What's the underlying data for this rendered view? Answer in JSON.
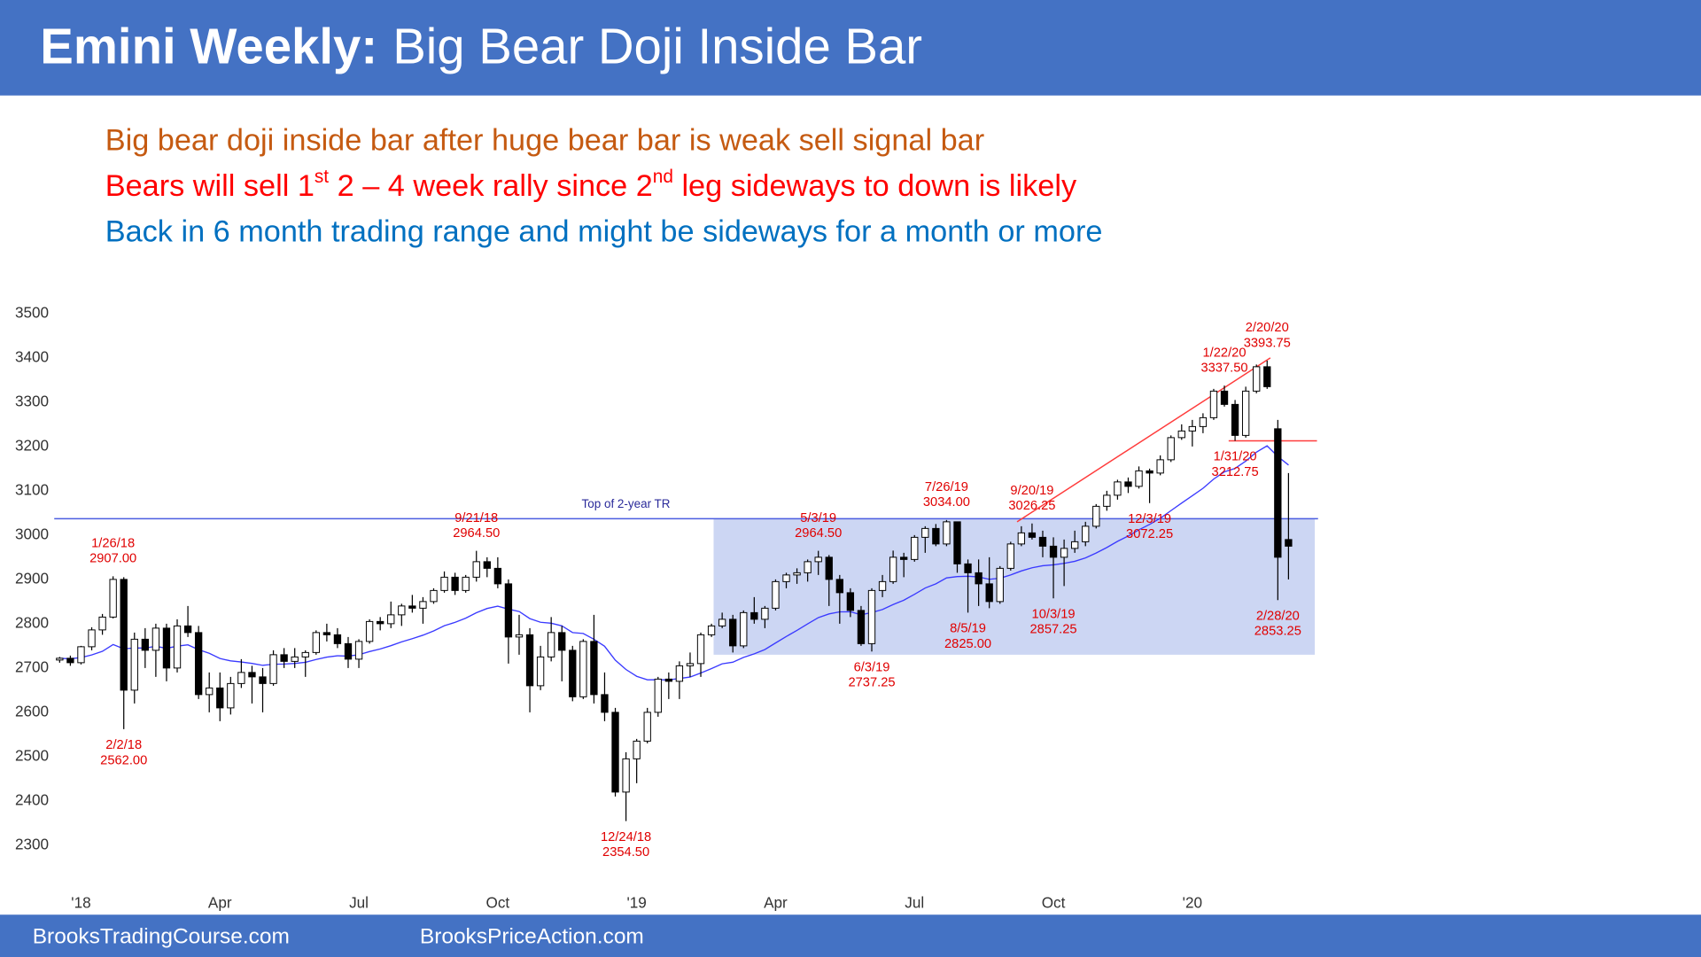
{
  "header": {
    "title_bold": "Emini Weekly:",
    "title": "Big Bear Doji Inside Bar"
  },
  "notes": [
    {
      "color": "#c55a11",
      "parts": [
        {
          "text": "Big bear doji inside bar after huge bear bar is weak sell signal bar"
        }
      ]
    },
    {
      "color": "#ff0000",
      "parts": [
        {
          "text": "Bears will sell 1"
        },
        {
          "text": "st",
          "sup": true
        },
        {
          "text": " 2 – 4 week rally since 2"
        },
        {
          "text": "nd",
          "sup": true
        },
        {
          "text": " leg sideways to down is likely"
        }
      ]
    },
    {
      "color": "#0070c0",
      "parts": [
        {
          "text": "Back in 6 month trading range and might be sideways for a month or more"
        }
      ]
    }
  ],
  "chart_data": {
    "type": "candlestick",
    "categories": [
      null,
      null,
      "'18",
      null,
      null,
      null,
      null,
      null,
      null,
      null,
      null,
      null,
      null,
      null,
      null,
      "Apr",
      null,
      null,
      null,
      null,
      null,
      null,
      null,
      null,
      null,
      null,
      null,
      null,
      "Jul",
      null,
      null,
      null,
      null,
      null,
      null,
      null,
      null,
      null,
      null,
      null,
      null,
      "Oct",
      null,
      null,
      null,
      null,
      null,
      null,
      null,
      null,
      null,
      null,
      null,
      null,
      "'19",
      null,
      null,
      null,
      null,
      null,
      null,
      null,
      null,
      null,
      null,
      null,
      null,
      "Apr",
      null,
      null,
      null,
      null,
      null,
      null,
      null,
      null,
      null,
      null,
      null,
      null,
      "Jul",
      null,
      null,
      null,
      null,
      null,
      null,
      null,
      null,
      null,
      null,
      null,
      null,
      "Oct",
      null,
      null,
      null,
      null,
      null,
      null,
      null,
      null,
      null,
      null,
      null,
      null,
      "'20",
      null,
      null,
      null,
      null,
      null,
      null,
      null,
      null,
      null
    ],
    "open": [
      2718,
      2722,
      2712,
      2748,
      2786,
      2815,
      2900,
      2650,
      2765,
      2740,
      2790,
      2700,
      2795,
      2780,
      2640,
      2655,
      2610,
      2665,
      2690,
      2680,
      2665,
      2730,
      2715,
      2725,
      2735,
      2780,
      2775,
      2755,
      2720,
      2760,
      2805,
      2800,
      2820,
      2840,
      2835,
      2850,
      2875,
      2905,
      2875,
      2905,
      2940,
      2925,
      2890,
      2770,
      2775,
      2660,
      2725,
      2780,
      2740,
      2635,
      2760,
      2640,
      2600,
      2420,
      2495,
      2535,
      2600,
      2675,
      2670,
      2705,
      2710,
      2775,
      2795,
      2810,
      2750,
      2825,
      2810,
      2835,
      2895,
      2910,
      2915,
      2940,
      2950,
      2900,
      2870,
      2830,
      2755,
      2875,
      2895,
      2950,
      2945,
      2995,
      3015,
      2980,
      3030,
      2935,
      2915,
      2890,
      2850,
      2925,
      2980,
      3005,
      2995,
      2975,
      2950,
      2970,
      2985,
      3020,
      3065,
      3090,
      3120,
      3110,
      3145,
      3140,
      3170,
      3220,
      3235,
      3245,
      3265,
      3325,
      3295,
      3225,
      3325,
      3380,
      3240,
      2990
    ],
    "high": [
      2725,
      2728,
      2750,
      2792,
      2822,
      2907,
      2905,
      2780,
      2790,
      2800,
      2800,
      2810,
      2840,
      2795,
      2690,
      2690,
      2680,
      2720,
      2705,
      2700,
      2740,
      2745,
      2745,
      2740,
      2785,
      2800,
      2790,
      2770,
      2765,
      2810,
      2815,
      2850,
      2845,
      2865,
      2860,
      2880,
      2918,
      2915,
      2910,
      2964.5,
      2950,
      2950,
      2900,
      2820,
      2790,
      2750,
      2815,
      2795,
      2750,
      2765,
      2820,
      2690,
      2610,
      2510,
      2540,
      2610,
      2680,
      2690,
      2715,
      2735,
      2780,
      2800,
      2825,
      2820,
      2830,
      2860,
      2840,
      2900,
      2915,
      2925,
      2945,
      2964.5,
      2955,
      2910,
      2880,
      2840,
      2880,
      2910,
      2965,
      2960,
      3000,
      3020,
      3025,
      3034,
      3030,
      2945,
      2945,
      2950,
      2930,
      2985,
      3020,
      3026.25,
      3010,
      2995,
      2990,
      3010,
      3030,
      3070,
      3100,
      3125,
      3130,
      3155,
      3150,
      3180,
      3225,
      3250,
      3260,
      3275,
      3330,
      3337.5,
      3305,
      3335,
      3385,
      3393.75,
      3260,
      3140
    ],
    "low": [
      2712,
      2705,
      2708,
      2740,
      2775,
      2812,
      2562,
      2620,
      2700,
      2680,
      2670,
      2690,
      2770,
      2630,
      2600,
      2580,
      2595,
      2655,
      2620,
      2600,
      2660,
      2700,
      2700,
      2680,
      2730,
      2760,
      2745,
      2700,
      2700,
      2755,
      2785,
      2790,
      2795,
      2825,
      2800,
      2845,
      2870,
      2865,
      2870,
      2895,
      2905,
      2880,
      2710,
      2730,
      2600,
      2650,
      2715,
      2670,
      2625,
      2630,
      2620,
      2580,
      2410,
      2354.5,
      2440,
      2530,
      2590,
      2630,
      2630,
      2680,
      2680,
      2770,
      2790,
      2735,
      2745,
      2800,
      2790,
      2830,
      2880,
      2890,
      2895,
      2910,
      2840,
      2800,
      2815,
      2750,
      2737.25,
      2860,
      2890,
      2905,
      2940,
      2960,
      2975,
      2975,
      2915,
      2825,
      2840,
      2835,
      2845,
      2920,
      2975,
      2990,
      2950,
      2857.25,
      2885,
      2960,
      2975,
      3015,
      3055,
      3080,
      3095,
      3105,
      3072.25,
      3135,
      3165,
      3215,
      3200,
      3230,
      3260,
      3290,
      3212.75,
      3220,
      3320,
      3330,
      2853.25,
      2900
    ],
    "close": [
      2722,
      2712,
      2748,
      2786,
      2815,
      2900,
      2650,
      2765,
      2740,
      2790,
      2700,
      2795,
      2780,
      2640,
      2655,
      2610,
      2665,
      2690,
      2680,
      2665,
      2730,
      2715,
      2725,
      2735,
      2780,
      2775,
      2755,
      2720,
      2760,
      2805,
      2800,
      2820,
      2840,
      2835,
      2850,
      2875,
      2905,
      2875,
      2905,
      2940,
      2925,
      2890,
      2770,
      2775,
      2660,
      2725,
      2780,
      2740,
      2635,
      2760,
      2640,
      2600,
      2420,
      2495,
      2535,
      2600,
      2675,
      2670,
      2705,
      2710,
      2775,
      2795,
      2810,
      2750,
      2825,
      2810,
      2835,
      2895,
      2910,
      2915,
      2940,
      2950,
      2900,
      2870,
      2830,
      2755,
      2875,
      2895,
      2950,
      2945,
      2995,
      3015,
      2980,
      3030,
      2935,
      2915,
      2890,
      2850,
      2925,
      2980,
      3005,
      2995,
      2975,
      2950,
      2970,
      2985,
      3020,
      3065,
      3090,
      3120,
      3110,
      3145,
      3140,
      3170,
      3220,
      3235,
      3245,
      3265,
      3325,
      3295,
      3225,
      3325,
      3380,
      3335,
      2950,
      2975
    ],
    "up_color": "#ffffff",
    "down_color": "#000000",
    "moving_average": {
      "period": 20,
      "color": "#3a3aff"
    },
    "ylim": [
      2250,
      3560
    ],
    "yticks": [
      2300,
      2400,
      2500,
      2600,
      2700,
      2800,
      2900,
      3000,
      3100,
      3200,
      3300,
      3400,
      3500
    ],
    "grid": false,
    "range_top": {
      "value": 3037,
      "label": "Top of 2-year TR",
      "color": "#4b5ee0"
    },
    "range_box": {
      "top": 3037,
      "bottom": 2730,
      "color": "#c6d1f2"
    },
    "trend_line": {
      "values": [
        3030,
        3400
      ],
      "color": "#ff3b3b"
    },
    "level": {
      "value": 3212.75,
      "color": "#ff3b3b"
    },
    "annotation_color": "#e00000",
    "annotations": [
      {
        "date": "1/26/18",
        "value": 2907,
        "value_label": "2907.00"
      },
      {
        "date": "2/2/18",
        "value": 2562,
        "value_label": "2562.00"
      },
      {
        "date": "9/21/18",
        "value": 2964.5,
        "value_label": "2964.50"
      },
      {
        "date": "12/24/18",
        "value": 2354.5,
        "value_label": "2354.50"
      },
      {
        "date": "5/3/19",
        "value": 2964.5,
        "value_label": "2964.50"
      },
      {
        "date": "6/3/19",
        "value": 2737.25,
        "value_label": "2737.25"
      },
      {
        "date": "7/26/19",
        "value": 3034,
        "value_label": "3034.00"
      },
      {
        "date": "8/5/19",
        "value": 2825,
        "value_label": "2825.00"
      },
      {
        "date": "9/20/19",
        "value": 3026.25,
        "value_label": "3026.25"
      },
      {
        "date": "10/3/19",
        "value": 2857.25,
        "value_label": "2857.25"
      },
      {
        "date": "12/3/19",
        "value": 3072.25,
        "value_label": "3072.25"
      },
      {
        "date": "1/22/20",
        "value": 3337.5,
        "value_label": "3337.50"
      },
      {
        "date": "1/31/20",
        "value": 3212.75,
        "value_label": "3212.75"
      },
      {
        "date": "2/20/20",
        "value": 3393.75,
        "value_label": "3393.75"
      },
      {
        "date": "2/28/20",
        "value": 2853.25,
        "value_label": "2853.25"
      }
    ]
  },
  "footer": {
    "left": "BrooksTradingCourse.com",
    "right": "BrooksPriceAction.com"
  }
}
